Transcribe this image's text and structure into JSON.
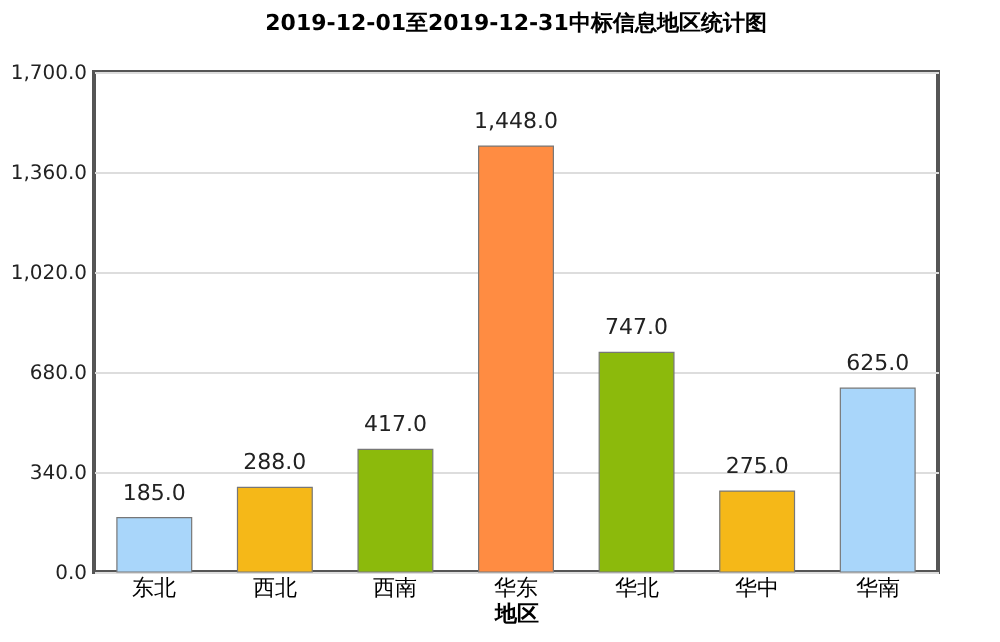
{
  "chart_data": {
    "type": "bar",
    "title": "2019-12-01至2019-12-31中标信息地区统计图",
    "xlabel": "地区",
    "categories": [
      "东北",
      "西北",
      "西南",
      "华东",
      "华北",
      "华中",
      "华南"
    ],
    "values": [
      185,
      288,
      417,
      1448,
      747,
      275,
      625
    ],
    "colors": [
      "#a9d6fa",
      "#f5b818",
      "#8cba0c",
      "#ff8c42",
      "#8cba0c",
      "#f5b818",
      "#a9d6fa"
    ],
    "value_labels": [
      "185.0",
      "288.0",
      "417.0",
      "1,448.0",
      "747.0",
      "275.0",
      "625.0"
    ],
    "ylim": [
      0,
      1700
    ],
    "yticks": [
      {
        "value": 0,
        "label": "0.0"
      },
      {
        "value": 340,
        "label": "340.0"
      },
      {
        "value": 680,
        "label": "680.0"
      },
      {
        "value": 1020,
        "label": "1,020.0"
      },
      {
        "value": 1360,
        "label": "1,360.0"
      },
      {
        "value": 1700,
        "label": "1,700.0"
      }
    ],
    "grid": "y"
  }
}
